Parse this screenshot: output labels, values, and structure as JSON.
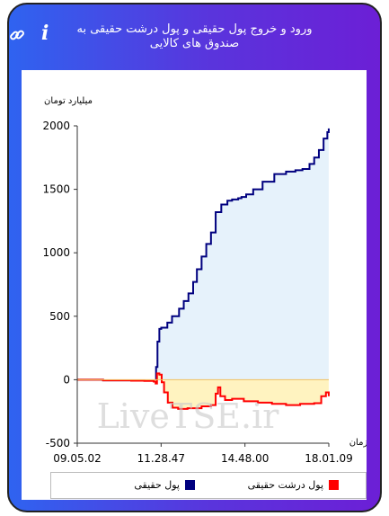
{
  "header": {
    "title": "ورود و خروج پول حقیقی و پول درشت حقیقی به صندوق های کالایی",
    "info_icon": "info-icon",
    "link_icon": "link-icon"
  },
  "colors": {
    "frame_gradient_start": "#2f63f0",
    "frame_gradient_end": "#6c1fd6",
    "series1": "#00007f",
    "series1_fill": "#e6f2fb",
    "series2": "#ff0000",
    "series2_fill": "#fff3c0"
  },
  "watermark": "LiveTSE.ir",
  "chart_data": {
    "type": "area",
    "ylabel": "میلیارد تومان",
    "xlabel": "زمان",
    "ylim": [
      -500,
      2000
    ],
    "yticks": [
      "2000",
      "1500",
      "1000",
      "500",
      "0",
      "-500"
    ],
    "x_tick_labels": [
      "09.05.02",
      "11.28.47",
      "14.48.00",
      "18.01.09"
    ],
    "x_range": [
      "09:05:02",
      "18:01:09"
    ],
    "grid": false,
    "legend_position": "bottom",
    "series": [
      {
        "name": "پول حقیقی",
        "x": [
          "09:05",
          "10:00",
          "11:00",
          "11:28",
          "11:50",
          "11:53",
          "11:56",
          "12:00",
          "12:04",
          "12:10",
          "12:17",
          "12:27",
          "12:42",
          "12:52",
          "13:02",
          "13:12",
          "13:20",
          "13:30",
          "13:40",
          "13:50",
          "14:00",
          "14:12",
          "14:25",
          "14:35",
          "14:48",
          "14:55",
          "15:05",
          "15:20",
          "15:40",
          "16:05",
          "16:30",
          "16:50",
          "17:05",
          "17:20",
          "17:30",
          "17:40",
          "17:50",
          "17:58",
          "18:01"
        ],
        "values": [
          0,
          -5,
          -8,
          -8,
          -5,
          100,
          300,
          400,
          410,
          410,
          450,
          500,
          560,
          620,
          680,
          770,
          870,
          970,
          1070,
          1160,
          1320,
          1380,
          1410,
          1420,
          1430,
          1440,
          1460,
          1500,
          1560,
          1620,
          1640,
          1650,
          1660,
          1700,
          1750,
          1810,
          1900,
          1950,
          1980
        ]
      },
      {
        "name": "پول درشت حقیقی",
        "x": [
          "09:05",
          "10:00",
          "11:00",
          "11:28",
          "11:48",
          "11:52",
          "11:55",
          "12:00",
          "12:05",
          "12:10",
          "12:18",
          "12:28",
          "12:40",
          "13:00",
          "13:30",
          "13:50",
          "14:00",
          "14:05",
          "14:10",
          "14:20",
          "14:35",
          "15:00",
          "15:30",
          "16:00",
          "16:30",
          "17:00",
          "17:30",
          "17:45",
          "17:55",
          "18:01"
        ],
        "values": [
          0,
          -5,
          -8,
          -10,
          -15,
          -30,
          50,
          40,
          -20,
          -100,
          -180,
          -220,
          -230,
          -225,
          -210,
          -200,
          -110,
          -60,
          -130,
          -160,
          -150,
          -170,
          -180,
          -190,
          -200,
          -190,
          -185,
          -130,
          -100,
          -130
        ]
      }
    ]
  }
}
